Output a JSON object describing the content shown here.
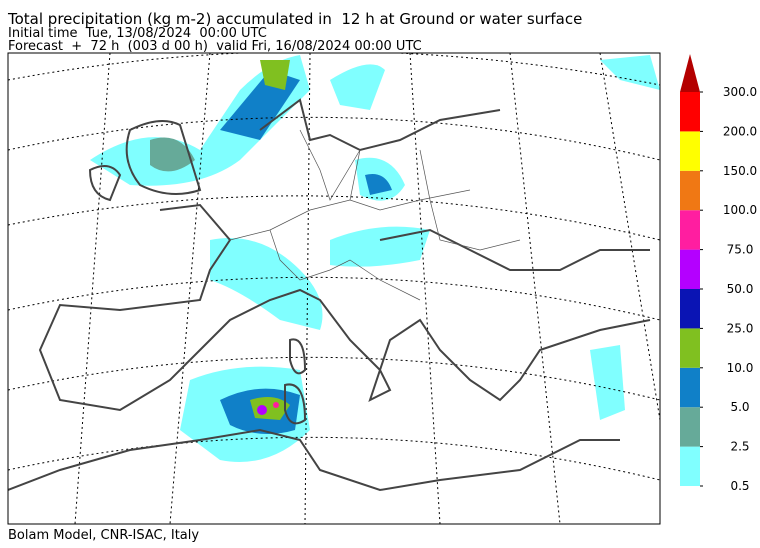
{
  "header": {
    "title": "Total precipitation (kg m-2) accumulated in  12 h at Ground or water surface",
    "initial": "Initial time  Tue, 13/08/2024  00:00 UTC",
    "forecast": "Forecast  +  72 h  (003 d 00 h)  valid Fri, 16/08/2024 00:00 UTC"
  },
  "colorbar": {
    "levels": [
      0.5,
      2.5,
      {
        "value": 5,
        "label": "5.0"
      },
      {
        "value": 10,
        "label": "10.0"
      },
      {
        "value": 25,
        "label": "25.0"
      },
      {
        "value": 50,
        "label": "50.0"
      },
      {
        "value": 75,
        "label": "75.0"
      },
      {
        "value": 100,
        "label": "100.0"
      },
      {
        "value": 150,
        "label": "150.0"
      },
      {
        "value": 200,
        "label": "200.0"
      },
      {
        "value": 300,
        "label": "300.0"
      }
    ],
    "colors": [
      "#80ffff",
      "#66aa99",
      "#1080c8",
      "#80c020",
      "#0a14b4",
      "#b400ff",
      "#ff1ea0",
      "#f07814",
      "#ffff00",
      "#ff0000"
    ],
    "extend_color": "#b40000"
  },
  "footer": "Bolam Model, CNR-ISAC, Italy"
}
